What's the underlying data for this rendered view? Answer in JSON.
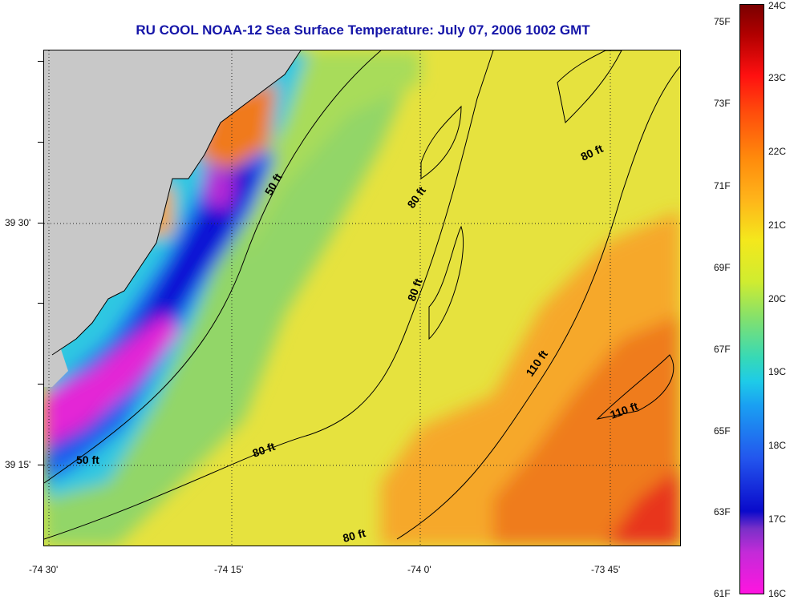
{
  "title": "RU COOL  NOAA-12  Sea Surface Temperature:  July 07, 2006 1002 GMT",
  "map": {
    "latitude_labels": [
      "39 30'",
      "39 15'"
    ],
    "longitude_labels": [
      "-74 30'",
      "-74 15'",
      "-74 0'",
      "-73 45'"
    ],
    "contour_labels": [
      "50 ft",
      "50 ft",
      "80 ft",
      "80 ft",
      "80 ft",
      "80 ft",
      "80 ft",
      "110 ft",
      "110 ft"
    ],
    "colors": {
      "land": "#c8c8c8",
      "cold": "#0a0acb",
      "coldest": "#ff14e0",
      "mid": "#f4e81c",
      "warm": "#ff8a0c"
    }
  },
  "colorbar": {
    "fahrenheit_labels": [
      "75F",
      "73F",
      "71F",
      "69F",
      "67F",
      "65F",
      "63F",
      "61F"
    ],
    "celsius_labels": [
      "24C",
      "23C",
      "22C",
      "21C",
      "20C",
      "19C",
      "18C",
      "17C",
      "16C"
    ]
  }
}
